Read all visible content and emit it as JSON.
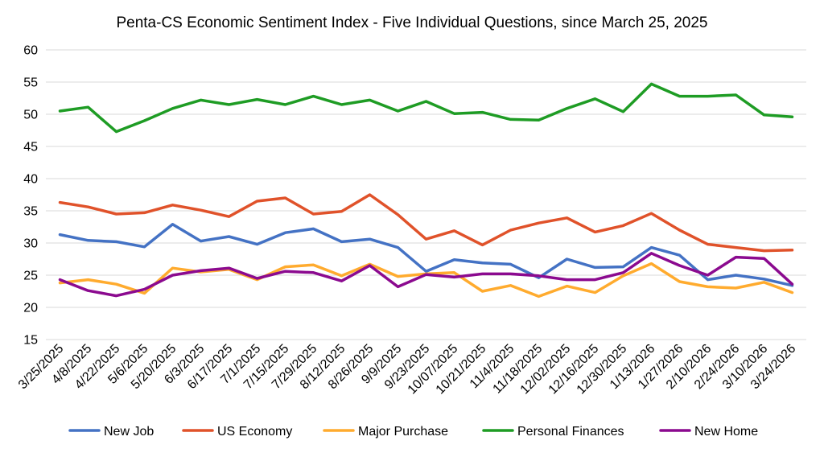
{
  "chart_data": {
    "type": "line",
    "title": "Penta-CS Economic Sentiment Index - Five Individual Questions, since March 25, 2025",
    "xlabel": "",
    "ylabel": "",
    "ylim": [
      15,
      60
    ],
    "yticks": [
      15,
      20,
      25,
      30,
      35,
      40,
      45,
      50,
      55,
      60
    ],
    "grid": true,
    "legend": "bottom",
    "categories": [
      "3/25/2025",
      "4/8/2025",
      "4/22/2025",
      "5/6/2025",
      "5/20/2025",
      "6/3/2025",
      "6/17/2025",
      "7/1/2025",
      "7/15/2025",
      "7/29/2025",
      "8/12/2025",
      "8/26/2025",
      "9/9/2025",
      "9/23/2025",
      "10/07/2025",
      "10/21/2025",
      "11/4/2025",
      "11/18/2025",
      "12/02/2025",
      "12/16/2025",
      "12/30/2025",
      "1/13/2026",
      "1/27/2026",
      "2/10/2026",
      "2/24/2026",
      "3/10/2026",
      "3/24/2026"
    ],
    "series": [
      {
        "name": "New Job",
        "color": "#4472c4",
        "values": [
          31.3,
          30.4,
          30.2,
          29.4,
          32.9,
          30.3,
          31.0,
          29.8,
          31.6,
          32.2,
          30.2,
          30.6,
          29.3,
          25.6,
          27.4,
          26.9,
          26.7,
          24.6,
          27.5,
          26.2,
          26.3,
          29.3,
          28.1,
          24.3,
          25.0,
          24.4,
          23.4
        ]
      },
      {
        "name": "US Economy",
        "color": "#e0522a",
        "values": [
          36.3,
          35.6,
          34.5,
          34.7,
          35.9,
          35.1,
          34.1,
          36.5,
          37.0,
          34.5,
          34.9,
          37.5,
          34.4,
          30.6,
          31.9,
          29.7,
          32.0,
          33.1,
          33.9,
          31.7,
          32.7,
          34.6,
          32.0,
          29.8,
          29.3,
          28.8,
          28.9
        ]
      },
      {
        "name": "Major Purchase",
        "color": "#ffab2e",
        "values": [
          23.8,
          24.3,
          23.6,
          22.2,
          26.1,
          25.5,
          25.9,
          24.3,
          26.3,
          26.6,
          24.9,
          26.7,
          24.8,
          25.2,
          25.4,
          22.5,
          23.4,
          21.7,
          23.3,
          22.3,
          24.9,
          26.8,
          24.0,
          23.2,
          23.0,
          23.9,
          22.3
        ]
      },
      {
        "name": "Personal Finances",
        "color": "#1e9c24",
        "values": [
          50.5,
          51.1,
          47.3,
          49.0,
          50.9,
          52.2,
          51.5,
          52.3,
          51.5,
          52.8,
          51.5,
          52.2,
          50.5,
          52.0,
          50.1,
          50.3,
          49.2,
          49.1,
          50.9,
          52.4,
          50.4,
          54.7,
          52.8,
          52.8,
          53.0,
          49.9,
          49.6
        ]
      },
      {
        "name": "New Home",
        "color": "#8b0a8f",
        "values": [
          24.3,
          22.6,
          21.8,
          22.8,
          25.0,
          25.7,
          26.1,
          24.5,
          25.6,
          25.4,
          24.1,
          26.5,
          23.2,
          25.1,
          24.7,
          25.2,
          25.2,
          24.9,
          24.3,
          24.3,
          25.4,
          28.4,
          26.5,
          25.0,
          27.8,
          27.6,
          23.6
        ]
      }
    ]
  }
}
